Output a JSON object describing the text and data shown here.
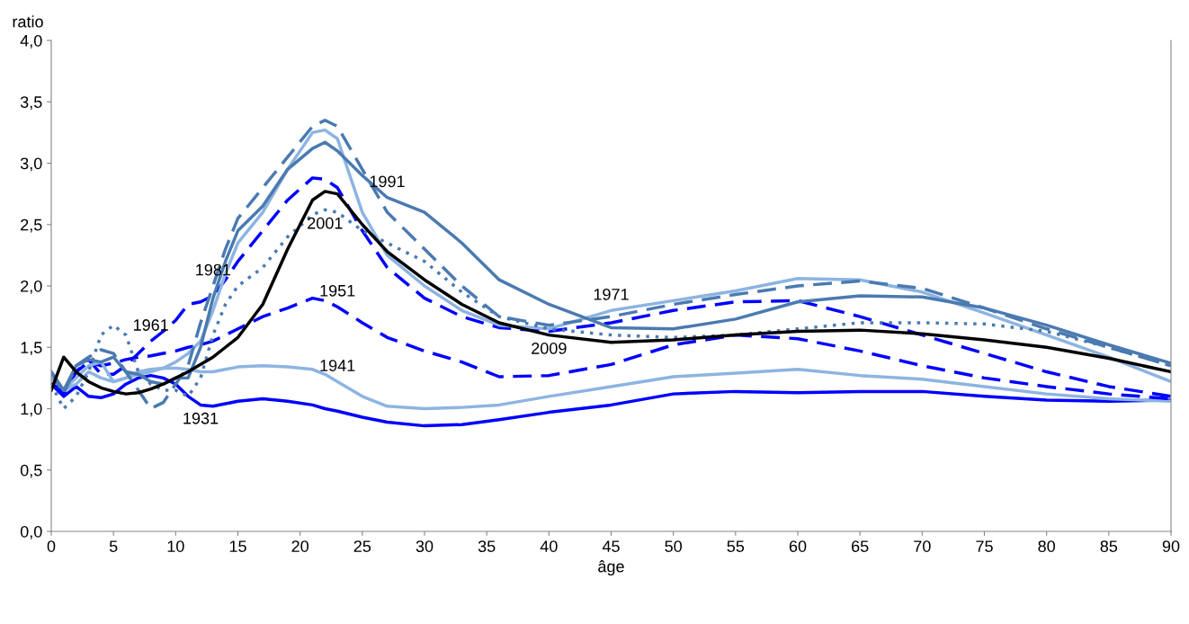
{
  "chart_data": {
    "type": "line",
    "xlabel": "âge",
    "ylabel": "ratio",
    "x": [
      0,
      1,
      2,
      3,
      4,
      5,
      6,
      7,
      8,
      9,
      10,
      11,
      12,
      13,
      14,
      15,
      17,
      19,
      21,
      22,
      23,
      25,
      27,
      30,
      33,
      36,
      40,
      45,
      50,
      55,
      60,
      65,
      70,
      75,
      80,
      85,
      90
    ],
    "series": [
      {
        "name": "1931",
        "color": "#0000ff",
        "line_style": "solid",
        "values": [
          1.2,
          1.1,
          1.18,
          1.1,
          1.09,
          1.12,
          1.2,
          1.25,
          1.27,
          1.25,
          1.2,
          1.1,
          1.03,
          1.02,
          1.04,
          1.06,
          1.08,
          1.06,
          1.03,
          1.0,
          0.98,
          0.93,
          0.89,
          0.86,
          0.87,
          0.91,
          0.97,
          1.03,
          1.12,
          1.14,
          1.13,
          1.14,
          1.14,
          1.1,
          1.07,
          1.06,
          1.07
        ]
      },
      {
        "name": "1941",
        "color": "#8db4e2",
        "line_style": "solid",
        "values": [
          1.25,
          1.15,
          1.2,
          1.3,
          1.25,
          1.22,
          1.25,
          1.3,
          1.32,
          1.33,
          1.33,
          1.32,
          1.3,
          1.3,
          1.32,
          1.34,
          1.35,
          1.34,
          1.32,
          1.28,
          1.22,
          1.1,
          1.02,
          1.0,
          1.01,
          1.03,
          1.1,
          1.18,
          1.26,
          1.29,
          1.32,
          1.27,
          1.24,
          1.18,
          1.12,
          1.08,
          1.06
        ]
      },
      {
        "name": "1951",
        "color": "#0000ff",
        "line_style": "dashed",
        "values": [
          1.2,
          1.15,
          1.3,
          1.38,
          1.35,
          1.37,
          1.4,
          1.42,
          1.43,
          1.45,
          1.47,
          1.5,
          1.52,
          1.55,
          1.6,
          1.65,
          1.75,
          1.82,
          1.9,
          1.88,
          1.83,
          1.7,
          1.58,
          1.47,
          1.38,
          1.26,
          1.27,
          1.36,
          1.52,
          1.6,
          1.57,
          1.47,
          1.35,
          1.25,
          1.18,
          1.12,
          1.08
        ]
      },
      {
        "name": "1961",
        "color": "#0000ff",
        "line_style": "dashed",
        "values": [
          1.2,
          1.12,
          1.3,
          1.4,
          1.28,
          1.28,
          1.35,
          1.45,
          1.55,
          1.63,
          1.72,
          1.85,
          1.87,
          1.92,
          2.05,
          2.2,
          2.45,
          2.7,
          2.88,
          2.87,
          2.8,
          2.45,
          2.15,
          1.9,
          1.75,
          1.66,
          1.63,
          1.7,
          1.8,
          1.87,
          1.88,
          1.75,
          1.6,
          1.45,
          1.3,
          1.18,
          1.1
        ]
      },
      {
        "name": "1971",
        "color": "#8db4e2",
        "line_style": "solid",
        "values": [
          1.28,
          1.15,
          1.25,
          1.35,
          1.38,
          1.22,
          1.25,
          1.28,
          1.3,
          1.33,
          1.38,
          1.45,
          1.55,
          1.8,
          2.1,
          2.35,
          2.6,
          2.95,
          3.25,
          3.27,
          3.2,
          2.6,
          2.25,
          2.0,
          1.8,
          1.68,
          1.65,
          1.8,
          1.88,
          1.96,
          2.06,
          2.05,
          1.95,
          1.78,
          1.6,
          1.42,
          1.22
        ]
      },
      {
        "name": "1981",
        "color": "#4a7ab0",
        "line_style": "dashed",
        "values": [
          1.3,
          1.12,
          1.35,
          1.42,
          1.48,
          1.45,
          1.3,
          1.15,
          1.0,
          1.05,
          1.2,
          1.35,
          1.7,
          2.0,
          2.3,
          2.55,
          2.8,
          3.05,
          3.3,
          3.35,
          3.3,
          2.95,
          2.6,
          2.3,
          2.0,
          1.75,
          1.68,
          1.75,
          1.85,
          1.93,
          2.0,
          2.04,
          1.98,
          1.82,
          1.65,
          1.5,
          1.35
        ]
      },
      {
        "name": "1991",
        "color": "#4a7ab0",
        "line_style": "solid",
        "values": [
          1.3,
          1.15,
          1.35,
          1.4,
          1.38,
          1.42,
          1.3,
          1.28,
          1.22,
          1.2,
          1.25,
          1.25,
          1.5,
          1.9,
          2.2,
          2.45,
          2.65,
          2.95,
          3.12,
          3.17,
          3.1,
          2.9,
          2.72,
          2.6,
          2.35,
          2.05,
          1.85,
          1.66,
          1.65,
          1.73,
          1.87,
          1.92,
          1.91,
          1.82,
          1.68,
          1.52,
          1.37
        ]
      },
      {
        "name": "2001",
        "color": "#4a7ab0",
        "line_style": "dotted",
        "values": [
          1.2,
          1.0,
          1.1,
          1.3,
          1.6,
          1.68,
          1.6,
          1.3,
          1.2,
          1.15,
          1.15,
          1.1,
          1.25,
          1.6,
          1.85,
          2.0,
          2.15,
          2.4,
          2.58,
          2.62,
          2.6,
          2.45,
          2.35,
          2.2,
          1.95,
          1.75,
          1.65,
          1.6,
          1.58,
          1.6,
          1.65,
          1.7,
          1.7,
          1.69,
          1.63,
          1.5,
          1.35
        ]
      },
      {
        "name": "2009",
        "color": "#000000",
        "line_style": "solid",
        "values": [
          1.15,
          1.42,
          1.3,
          1.22,
          1.17,
          1.14,
          1.12,
          1.13,
          1.16,
          1.2,
          1.25,
          1.3,
          1.36,
          1.42,
          1.5,
          1.58,
          1.85,
          2.3,
          2.7,
          2.77,
          2.75,
          2.5,
          2.28,
          2.05,
          1.85,
          1.7,
          1.6,
          1.54,
          1.56,
          1.6,
          1.63,
          1.64,
          1.61,
          1.56,
          1.5,
          1.41,
          1.3
        ]
      }
    ],
    "xlim": [
      0,
      90
    ],
    "xticks": [
      0,
      5,
      10,
      15,
      20,
      25,
      30,
      35,
      40,
      45,
      50,
      55,
      60,
      65,
      70,
      75,
      80,
      85,
      90
    ],
    "ylim": [
      0,
      4
    ],
    "yticks": [
      {
        "value": 0,
        "label": "0,0"
      },
      {
        "value": 0.5,
        "label": "0,5"
      },
      {
        "value": 1,
        "label": "1,0"
      },
      {
        "value": 1.5,
        "label": "1,5"
      },
      {
        "value": 2,
        "label": "2,0"
      },
      {
        "value": 2.5,
        "label": "2,5"
      },
      {
        "value": 3,
        "label": "3,0"
      },
      {
        "value": 3.5,
        "label": "3,5"
      },
      {
        "value": 4,
        "label": "4,0"
      }
    ],
    "grid": false,
    "legend": false
  }
}
